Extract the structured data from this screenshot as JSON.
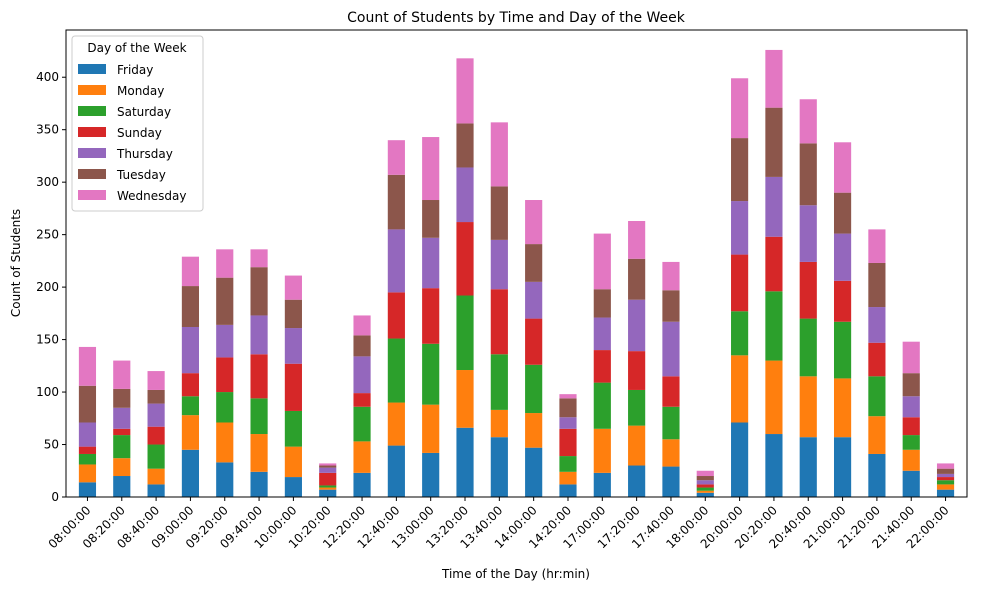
{
  "chart_data": {
    "type": "bar",
    "stacked": true,
    "title": "Count of Students by Time and Day of the Week",
    "xlabel": "Time of the Day (hr:min)",
    "ylabel": "Count of Students",
    "ylim": [
      0,
      445
    ],
    "yticks": [
      0,
      50,
      100,
      150,
      200,
      250,
      300,
      350,
      400
    ],
    "legend_title": "Day of the Week",
    "legend_position": "top-left",
    "categories": [
      "08:00:00",
      "08:20:00",
      "08:40:00",
      "09:00:00",
      "09:20:00",
      "09:40:00",
      "10:00:00",
      "10:20:00",
      "12:20:00",
      "12:40:00",
      "13:00:00",
      "13:20:00",
      "13:40:00",
      "14:00:00",
      "14:20:00",
      "17:00:00",
      "17:20:00",
      "17:40:00",
      "18:00:00",
      "20:00:00",
      "20:20:00",
      "20:40:00",
      "21:00:00",
      "21:20:00",
      "21:40:00",
      "22:00:00"
    ],
    "series": [
      {
        "name": "Friday",
        "color": "#1f77b4",
        "values": [
          14,
          20,
          12,
          45,
          33,
          24,
          19,
          7,
          23,
          49,
          42,
          66,
          57,
          47,
          12,
          23,
          30,
          29,
          4,
          71,
          60,
          57,
          57,
          41,
          25,
          7
        ]
      },
      {
        "name": "Monday",
        "color": "#ff7f0e",
        "values": [
          17,
          17,
          15,
          33,
          38,
          36,
          29,
          2,
          30,
          41,
          46,
          55,
          26,
          33,
          12,
          42,
          38,
          26,
          2,
          64,
          70,
          58,
          56,
          36,
          20,
          5
        ]
      },
      {
        "name": "Saturday",
        "color": "#2ca02c",
        "values": [
          10,
          22,
          23,
          18,
          29,
          34,
          34,
          2,
          33,
          61,
          58,
          71,
          53,
          46,
          15,
          44,
          34,
          31,
          3,
          42,
          66,
          55,
          54,
          38,
          14,
          4
        ]
      },
      {
        "name": "Sunday",
        "color": "#d62728",
        "values": [
          7,
          6,
          17,
          22,
          33,
          42,
          45,
          12,
          13,
          44,
          53,
          70,
          62,
          44,
          26,
          31,
          37,
          29,
          3,
          54,
          52,
          54,
          39,
          32,
          17,
          3
        ]
      },
      {
        "name": "Thursday",
        "color": "#9467bd",
        "values": [
          23,
          20,
          22,
          44,
          31,
          37,
          34,
          5,
          35,
          60,
          48,
          52,
          47,
          35,
          11,
          31,
          49,
          52,
          4,
          51,
          57,
          54,
          45,
          34,
          20,
          3
        ]
      },
      {
        "name": "Tuesday",
        "color": "#8c564b",
        "values": [
          35,
          18,
          13,
          39,
          45,
          46,
          27,
          2,
          20,
          52,
          36,
          42,
          51,
          36,
          18,
          27,
          39,
          30,
          4,
          60,
          66,
          59,
          39,
          42,
          22,
          5
        ]
      },
      {
        "name": "Wednesday",
        "color": "#e377c2",
        "values": [
          37,
          27,
          18,
          28,
          27,
          17,
          23,
          2,
          19,
          33,
          60,
          62,
          61,
          42,
          4,
          53,
          36,
          27,
          5,
          57,
          55,
          42,
          48,
          32,
          30,
          5
        ]
      }
    ]
  }
}
